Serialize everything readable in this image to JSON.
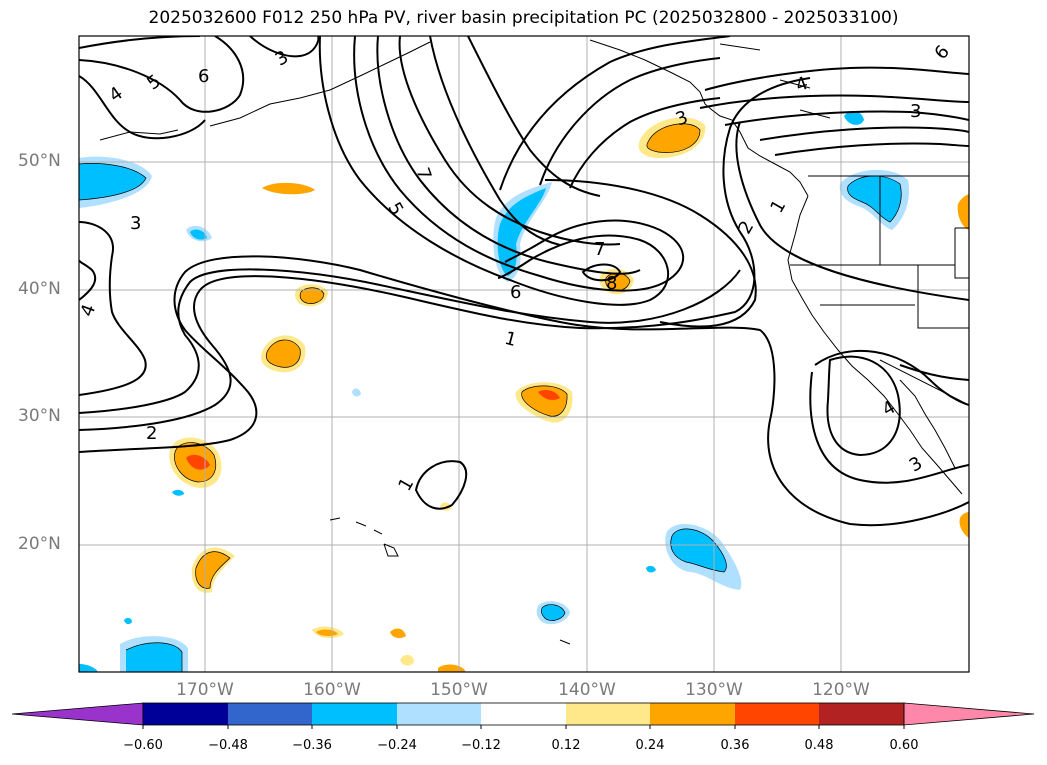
{
  "title": "2025032600 F012 250 hPa PV, river basin precipitation PC (2025032800 - 2025033100)",
  "map": {
    "lat_labels": [
      "50°N",
      "40°N",
      "30°N",
      "20°N"
    ],
    "lon_labels": [
      "170°W",
      "160°W",
      "150°W",
      "140°W",
      "130°W",
      "120°W"
    ],
    "contour_labels": [
      {
        "id": "c3a",
        "text": "3"
      },
      {
        "id": "c6a",
        "text": "6"
      },
      {
        "id": "c3b",
        "text": "3"
      },
      {
        "id": "c4a",
        "text": "4"
      },
      {
        "id": "c5a",
        "text": "5"
      },
      {
        "id": "c3c",
        "text": "3"
      },
      {
        "id": "c4b",
        "text": "4"
      },
      {
        "id": "c7a",
        "text": "7"
      },
      {
        "id": "c5b",
        "text": "5"
      },
      {
        "id": "c7b",
        "text": "7"
      },
      {
        "id": "c6b",
        "text": "6"
      },
      {
        "id": "c8",
        "text": "8"
      },
      {
        "id": "c1a",
        "text": "1"
      },
      {
        "id": "c2a",
        "text": "2"
      },
      {
        "id": "c1b",
        "text": "1"
      },
      {
        "id": "c2b",
        "text": "2"
      },
      {
        "id": "c1c",
        "text": "1"
      },
      {
        "id": "c4c",
        "text": "4"
      },
      {
        "id": "c3d",
        "text": "3"
      },
      {
        "id": "c4d",
        "text": "4"
      },
      {
        "id": "c3e",
        "text": "3"
      },
      {
        "id": "c6c",
        "text": "6"
      }
    ]
  },
  "colorbar": {
    "colors": [
      "#9933cc",
      "#000099",
      "#3366cc",
      "#00bfff",
      "#b0e0ff",
      "#ffffff",
      "#ffe88a",
      "#ffa500",
      "#ff4500",
      "#b22222",
      "#ff88aa"
    ],
    "ticks": [
      "−0.60",
      "−0.48",
      "−0.36",
      "−0.24",
      "−0.12",
      "0.12",
      "0.24",
      "0.36",
      "0.48",
      "0.60"
    ]
  }
}
